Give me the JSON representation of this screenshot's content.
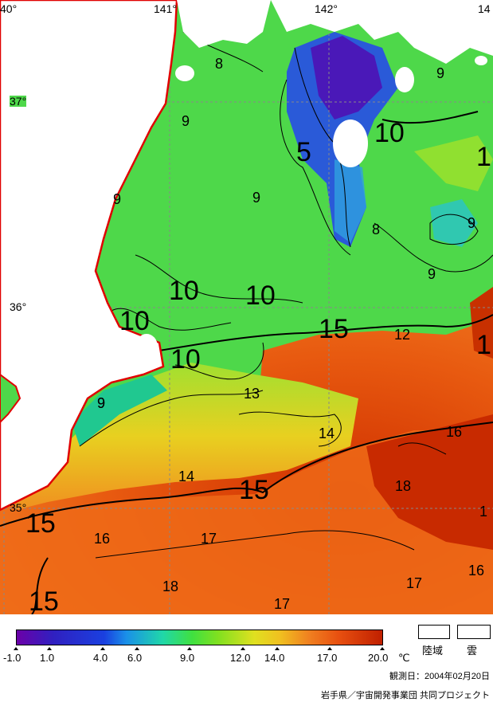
{
  "map": {
    "lon_labels": [
      "40°",
      "141°",
      "142°",
      "14"
    ],
    "lat_labels": [
      "37°",
      "36°",
      "35°"
    ],
    "contour_labels": [
      {
        "text": "8"
      },
      {
        "text": "9"
      },
      {
        "text": "9"
      },
      {
        "text": "9"
      },
      {
        "text": "9"
      },
      {
        "text": "9"
      },
      {
        "text": "9"
      },
      {
        "text": "5"
      },
      {
        "text": "10"
      },
      {
        "text": "1"
      },
      {
        "text": "8"
      },
      {
        "text": "9"
      },
      {
        "text": "10"
      },
      {
        "text": "10"
      },
      {
        "text": "10"
      },
      {
        "text": "10"
      },
      {
        "text": "15"
      },
      {
        "text": "12"
      },
      {
        "text": "1"
      },
      {
        "text": "9"
      },
      {
        "text": "13"
      },
      {
        "text": "14"
      },
      {
        "text": "16"
      },
      {
        "text": "18"
      },
      {
        "text": "14"
      },
      {
        "text": "15"
      },
      {
        "text": "15"
      },
      {
        "text": "16"
      },
      {
        "text": "17"
      },
      {
        "text": "1"
      },
      {
        "text": "15"
      },
      {
        "text": "18"
      },
      {
        "text": "17"
      },
      {
        "text": "17"
      },
      {
        "text": "16"
      }
    ]
  },
  "legend": {
    "ticks": [
      "-1.0",
      "1.0",
      "4.0",
      "6.0",
      "9.0",
      "12.0",
      "14.0",
      "17.0",
      "20.0"
    ],
    "unit": "℃",
    "land_label": "陸域",
    "cloud_label": "雲"
  },
  "footer": {
    "observation_date": "観測日：2004年02月20日",
    "credit": "岩手県／宇宙開発事業団 共同プロジェクト"
  },
  "colors": {
    "land": "#ffffff",
    "coastline": "#e00000",
    "cold": "#3020c0",
    "green": "#40e040",
    "warm": "#e85010"
  }
}
